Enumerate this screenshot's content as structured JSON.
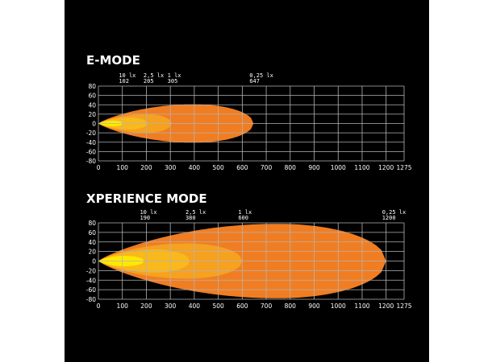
{
  "colors": {
    "background": "#000000",
    "grid": "#b4b4b4",
    "lux_0_25": "#f07d22",
    "lux_1": "#f6a11f",
    "lux_2_5": "#f9b81c",
    "lux_10": "#ffe800"
  },
  "chart_data": [
    {
      "type": "area",
      "title": "E-MODE",
      "xlim": [
        0,
        1275
      ],
      "ylim": [
        -80,
        80
      ],
      "x_ticks": [
        "0",
        "100",
        "200",
        "300",
        "400",
        "500",
        "600",
        "700",
        "800",
        "900",
        "1000",
        "1100",
        "1200",
        "1275"
      ],
      "y_ticks": [
        "80",
        "60",
        "40",
        "20",
        "0",
        "-20",
        "-40",
        "-60",
        "-80"
      ],
      "grid": true,
      "annotations": [
        {
          "lux": "10 lx",
          "distance": "102"
        },
        {
          "lux": "2,5 lx",
          "distance": "205"
        },
        {
          "lux": "1 lx",
          "distance": "305"
        },
        {
          "lux": "0,25 lx",
          "distance": "647"
        }
      ],
      "beams": [
        {
          "lux": "0,25 lx",
          "reach": 647,
          "peak_x": 400,
          "half_width": 41
        },
        {
          "lux": "1 lx",
          "reach": 305,
          "peak_x": 200,
          "half_width": 20
        },
        {
          "lux": "2,5 lx",
          "reach": 205,
          "peak_x": 130,
          "half_width": 13
        },
        {
          "lux": "10 lx",
          "reach": 102,
          "peak_x": 60,
          "half_width": 6
        }
      ]
    },
    {
      "type": "area",
      "title": "XPERIENCE MODE",
      "xlim": [
        0,
        1275
      ],
      "ylim": [
        -80,
        80
      ],
      "x_ticks": [
        "0",
        "100",
        "200",
        "300",
        "400",
        "500",
        "600",
        "700",
        "800",
        "900",
        "1000",
        "1100",
        "1200",
        "1275"
      ],
      "y_ticks": [
        "80",
        "60",
        "40",
        "20",
        "0",
        "-20",
        "-40",
        "-60",
        "-80"
      ],
      "grid": true,
      "annotations": [
        {
          "lux": "10 lx",
          "distance": "190"
        },
        {
          "lux": "2,5 lx",
          "distance": "380"
        },
        {
          "lux": "1 lx",
          "distance": "600"
        },
        {
          "lux": "0,25 lx",
          "distance": "1200"
        }
      ],
      "beams": [
        {
          "lux": "0,25 lx",
          "reach": 1200,
          "peak_x": 750,
          "half_width": 78
        },
        {
          "lux": "1 lx",
          "reach": 600,
          "peak_x": 370,
          "half_width": 37
        },
        {
          "lux": "2,5 lx",
          "reach": 380,
          "peak_x": 240,
          "half_width": 24
        },
        {
          "lux": "10 lx",
          "reach": 190,
          "peak_x": 110,
          "half_width": 11
        }
      ]
    }
  ]
}
